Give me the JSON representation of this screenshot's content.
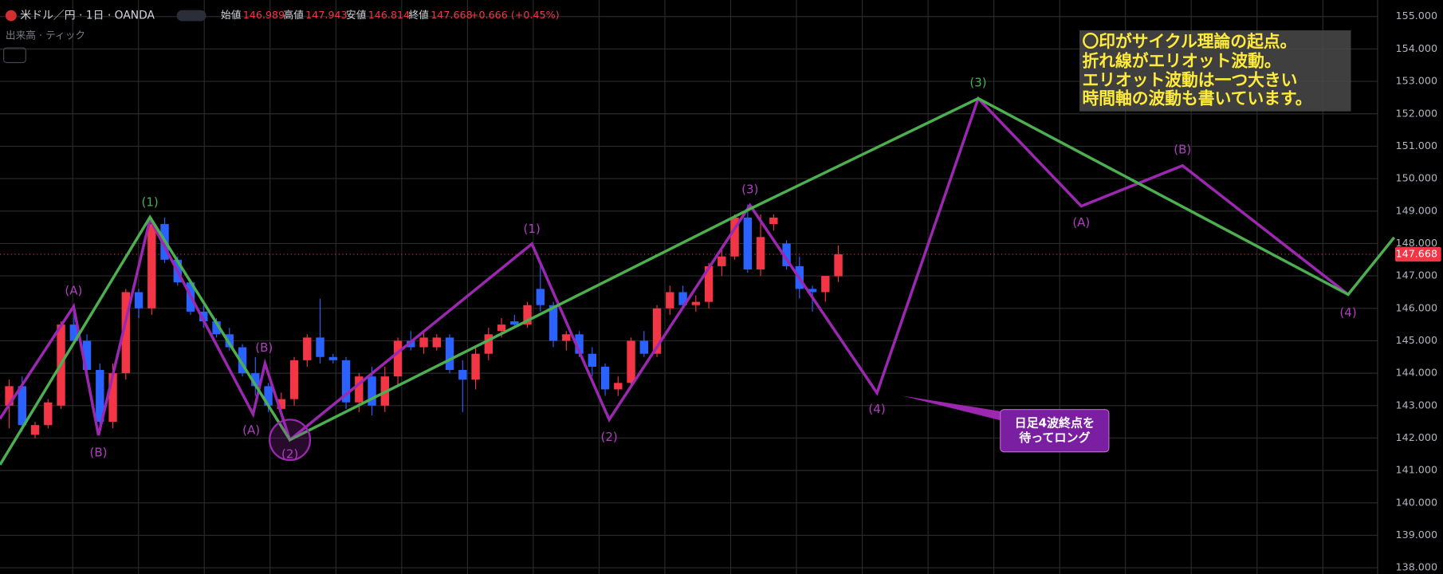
{
  "header": {
    "symbol": "米ドル／円 · 1日 · OANDA",
    "open_label": "始値",
    "open": "146.989",
    "high_label": "高値",
    "high": "147.943",
    "low_label": "安値",
    "low": "146.814",
    "close_label": "終値",
    "close": "147.668",
    "change": "+0.666 (+0.45%)",
    "volume_label": "出来高 · ティック"
  },
  "chart_data": {
    "type": "candlestick",
    "series": {
      "open": [
        143.0,
        143.6,
        142.1,
        142.4,
        143.0,
        145.5,
        145.0,
        144.1,
        142.5,
        144.0,
        146.5,
        146.0,
        148.6,
        147.5,
        146.8,
        145.9,
        145.6,
        145.2,
        144.8,
        144.0,
        143.6,
        142.9,
        143.2,
        144.4,
        145.1,
        144.5,
        144.4,
        143.1,
        143.9,
        143.0,
        143.9,
        145.0,
        144.8,
        144.8,
        145.1,
        144.1,
        143.8,
        144.6,
        145.3,
        145.6,
        145.5,
        146.6,
        146.1,
        145.0,
        145.2,
        144.6,
        144.2,
        143.5,
        143.7,
        145.0,
        144.6,
        146.0,
        146.5,
        146.1,
        146.2,
        147.3,
        147.6,
        148.8,
        147.2,
        148.6,
        148.0,
        147.3,
        146.6,
        146.5,
        146.989
      ],
      "high": [
        143.8,
        143.9,
        142.5,
        143.2,
        145.6,
        146.0,
        145.2,
        144.3,
        144.3,
        146.6,
        146.6,
        148.8,
        148.8,
        147.6,
        146.9,
        146.1,
        145.7,
        145.4,
        144.9,
        144.5,
        143.7,
        143.4,
        144.5,
        145.2,
        146.3,
        144.6,
        144.5,
        144.0,
        144.2,
        144.2,
        145.1,
        145.3,
        145.3,
        145.2,
        145.2,
        144.4,
        144.8,
        145.4,
        145.7,
        145.8,
        146.2,
        147.4,
        146.2,
        145.3,
        145.3,
        144.8,
        144.3,
        143.9,
        145.1,
        145.3,
        146.1,
        146.7,
        146.7,
        146.4,
        147.4,
        147.8,
        148.9,
        149.2,
        148.9,
        148.9,
        148.1,
        147.6,
        146.7,
        147.0,
        147.943
      ],
      "low": [
        142.3,
        142.2,
        142.0,
        142.3,
        142.9,
        144.9,
        144.0,
        142.2,
        142.3,
        143.8,
        145.7,
        145.8,
        147.4,
        146.7,
        145.8,
        145.4,
        145.1,
        144.7,
        143.9,
        143.3,
        142.8,
        142.8,
        143.0,
        144.2,
        144.3,
        144.3,
        142.9,
        142.8,
        142.7,
        142.8,
        143.6,
        144.7,
        144.6,
        144.7,
        144.0,
        142.8,
        143.5,
        144.4,
        145.1,
        145.4,
        145.4,
        145.9,
        144.8,
        144.7,
        144.5,
        143.9,
        143.3,
        143.3,
        143.6,
        144.5,
        144.5,
        145.8,
        146.0,
        145.9,
        146.0,
        147.0,
        147.5,
        147.1,
        147.0,
        148.4,
        147.2,
        146.3,
        145.9,
        146.2,
        146.814
      ],
      "close": [
        143.6,
        142.4,
        142.4,
        143.1,
        145.5,
        145.0,
        144.1,
        142.5,
        144.0,
        146.5,
        146.0,
        148.6,
        147.5,
        146.8,
        145.9,
        145.6,
        145.2,
        144.8,
        144.0,
        143.6,
        143.0,
        143.2,
        144.4,
        145.1,
        144.5,
        144.4,
        143.1,
        143.9,
        143.0,
        143.9,
        145.0,
        144.8,
        145.1,
        145.1,
        144.1,
        143.8,
        144.6,
        145.2,
        145.5,
        145.5,
        146.1,
        146.1,
        145.0,
        145.2,
        144.6,
        144.2,
        143.5,
        143.7,
        145.0,
        144.6,
        146.0,
        146.5,
        146.1,
        146.2,
        147.3,
        147.6,
        148.8,
        147.2,
        148.2,
        148.8,
        147.3,
        146.6,
        146.5,
        147.0,
        147.668
      ]
    },
    "colors": {
      "up": "#f23645",
      "down": "#2962ff"
    },
    "ylim": [
      137.8,
      155.51
    ],
    "yticks": [
      {
        "value": 138,
        "label": "138.000"
      },
      {
        "value": 139,
        "label": "139.000"
      },
      {
        "value": 140,
        "label": "140.000"
      },
      {
        "value": 141,
        "label": "141.000"
      },
      {
        "value": 142,
        "label": "142.000"
      },
      {
        "value": 143,
        "label": "143.000"
      },
      {
        "value": 144,
        "label": "144.000"
      },
      {
        "value": 145,
        "label": "145.000"
      },
      {
        "value": 146,
        "label": "146.000"
      },
      {
        "value": 147,
        "label": "147.000"
      },
      {
        "value": 148,
        "label": "148.000"
      },
      {
        "value": 149,
        "label": "149.000"
      },
      {
        "value": 150,
        "label": "150.000"
      },
      {
        "value": 151,
        "label": "151.000"
      },
      {
        "value": 152,
        "label": "152.000"
      },
      {
        "value": 153,
        "label": "153.000"
      },
      {
        "value": 154,
        "label": "154.000"
      },
      {
        "value": 155,
        "label": "155.000"
      }
    ],
    "last_price": {
      "value": 147.668,
      "label": "147.668"
    },
    "grid": true
  },
  "annotations": {
    "labels": [
      "(A)",
      "(B)",
      "(1)",
      "(B)",
      "(A)",
      "(2)",
      "(1)",
      "(2)",
      "(3)",
      "(4)",
      "(3)",
      "(A)",
      "(B)",
      "(4)"
    ],
    "note": [
      "〇印がサイクル理論の起点。",
      "折れ線がエリオット波動。",
      "エリオット波動は一つ大きい",
      "時間軸の波動も書いています。"
    ],
    "callout": [
      "日足4波終点を",
      "待ってロング"
    ]
  }
}
